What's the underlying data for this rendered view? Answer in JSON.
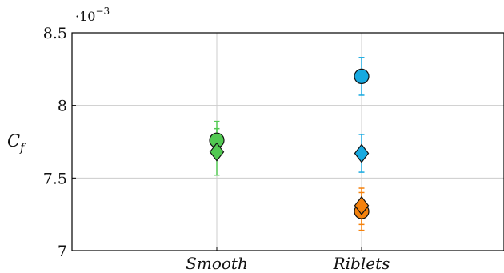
{
  "chart_data": {
    "type": "scatter",
    "ylabel": "C",
    "ylabel_subscript": "f",
    "y_multiplier": "·10",
    "y_multiplier_exponent": "−3",
    "ylim": [
      7.0,
      8.5
    ],
    "yticks": [
      {
        "value": 7.0,
        "label": "7"
      },
      {
        "value": 7.5,
        "label": "7.5"
      },
      {
        "value": 8.0,
        "label": "8"
      },
      {
        "value": 8.5,
        "label": "8.5"
      }
    ],
    "categories": [
      "Smooth",
      "Riblets"
    ],
    "grid": true,
    "colors": {
      "green": "#52c952",
      "blue": "#17a9e0",
      "orange": "#f5820d",
      "grid": "#cccccc",
      "axis": "#000000"
    },
    "points": [
      {
        "category": "Smooth",
        "marker": "circle",
        "color": "green",
        "y": 7.76,
        "y_low": 7.69,
        "y_high": 7.84
      },
      {
        "category": "Smooth",
        "marker": "diamond",
        "color": "green",
        "y": 7.68,
        "y_low": 7.52,
        "y_high": 7.89
      },
      {
        "category": "Riblets",
        "marker": "circle",
        "color": "blue",
        "y": 8.2,
        "y_low": 8.07,
        "y_high": 8.33
      },
      {
        "category": "Riblets",
        "marker": "diamond",
        "color": "blue",
        "y": 7.67,
        "y_low": 7.54,
        "y_high": 7.8
      },
      {
        "category": "Riblets",
        "marker": "circle",
        "color": "orange",
        "y": 7.27,
        "y_low": 7.14,
        "y_high": 7.4
      },
      {
        "category": "Riblets",
        "marker": "diamond",
        "color": "orange",
        "y": 7.31,
        "y_low": 7.18,
        "y_high": 7.43
      }
    ]
  }
}
